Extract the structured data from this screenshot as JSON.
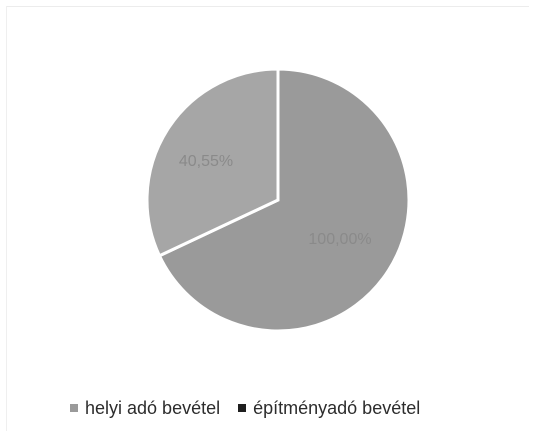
{
  "chart_data": {
    "type": "pie",
    "legend_position": "bottom",
    "slices": [
      {
        "name": "helyi adó bevétel",
        "label": "100,00%",
        "share": 0.68,
        "color": "#9a9a9a"
      },
      {
        "name": "építményadó bevétel",
        "label": "40,55%",
        "share": 0.32,
        "color": "#a6a6a6"
      }
    ],
    "legend": [
      {
        "name": "helyi adó bevétel",
        "color": "#9a9a9a"
      },
      {
        "name": "építményadó bevétel",
        "color": "#1f1f1f"
      }
    ],
    "label_color": "#8a8a8a"
  }
}
